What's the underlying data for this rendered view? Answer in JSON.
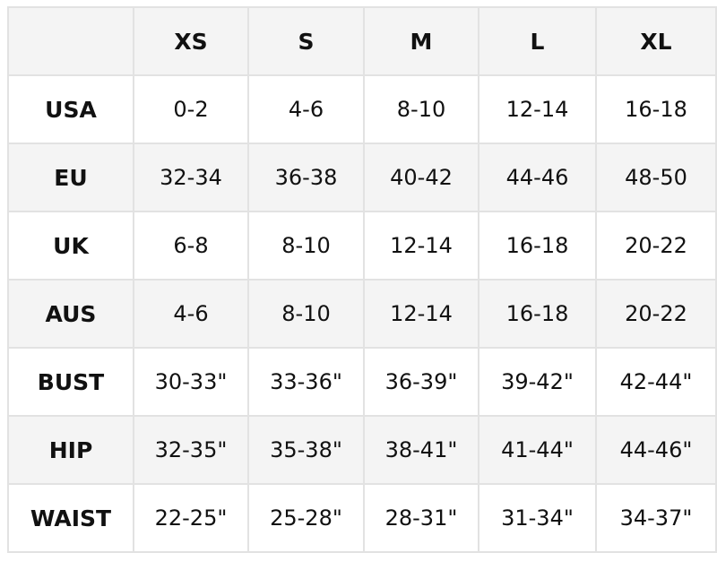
{
  "table": {
    "columns": [
      "XS",
      "S",
      "M",
      "L",
      "XL"
    ],
    "rows": [
      {
        "label": "USA",
        "values": [
          "0-2",
          "4-6",
          "8-10",
          "12-14",
          "16-18"
        ]
      },
      {
        "label": "EU",
        "values": [
          "32-34",
          "36-38",
          "40-42",
          "44-46",
          "48-50"
        ]
      },
      {
        "label": "UK",
        "values": [
          "6-8",
          "8-10",
          "12-14",
          "16-18",
          "20-22"
        ]
      },
      {
        "label": "AUS",
        "values": [
          "4-6",
          "8-10",
          "12-14",
          "16-18",
          "20-22"
        ]
      },
      {
        "label": "BUST",
        "values": [
          "30-33\"",
          "33-36\"",
          "36-39\"",
          "39-42\"",
          "42-44\""
        ]
      },
      {
        "label": "HIP",
        "values": [
          "32-35\"",
          "35-38\"",
          "38-41\"",
          "41-44\"",
          "44-46\""
        ]
      },
      {
        "label": "WAIST",
        "values": [
          "22-25\"",
          "25-28\"",
          "28-31\"",
          "31-34\"",
          "34-37\""
        ]
      }
    ]
  }
}
